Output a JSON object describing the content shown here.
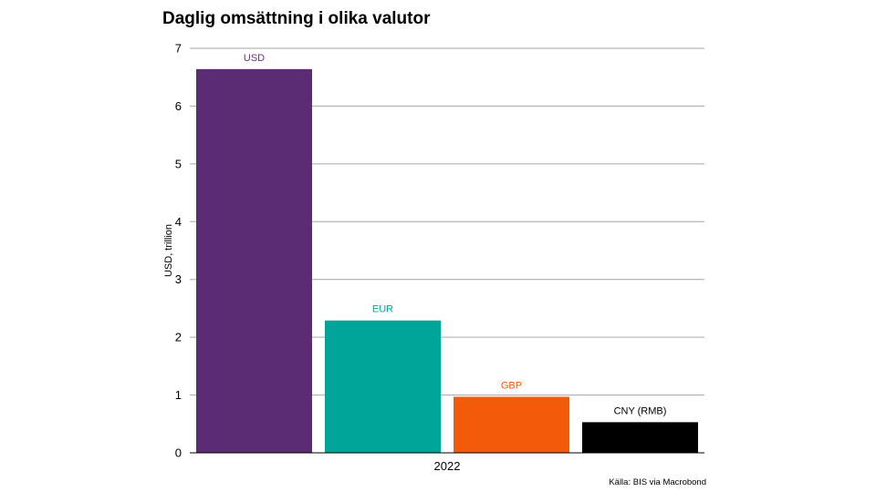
{
  "chart_data": {
    "type": "bar",
    "title": "Daglig omsättning i olika valutor",
    "ylabel": "USD, trillion",
    "xlabel": "",
    "categories": [
      "2022"
    ],
    "series": [
      {
        "name": "USD",
        "values": [
          6.64
        ],
        "color": "#5b2c74"
      },
      {
        "name": "EUR",
        "values": [
          2.29
        ],
        "color": "#00a59a"
      },
      {
        "name": "GBP",
        "values": [
          0.97
        ],
        "color": "#f35a09"
      },
      {
        "name": "CNY (RMB)",
        "values": [
          0.53
        ],
        "color": "#000000"
      }
    ],
    "label_colors": [
      "#6a2c86",
      "#00a59a",
      "#f35a09",
      "#000000"
    ],
    "ylim": [
      0,
      7
    ],
    "yticks": [
      "0",
      "1",
      "2",
      "3",
      "4",
      "5",
      "6",
      "7"
    ],
    "grid": true,
    "legend": "labels above bars",
    "source": "Källa: BIS via Macrobond"
  }
}
